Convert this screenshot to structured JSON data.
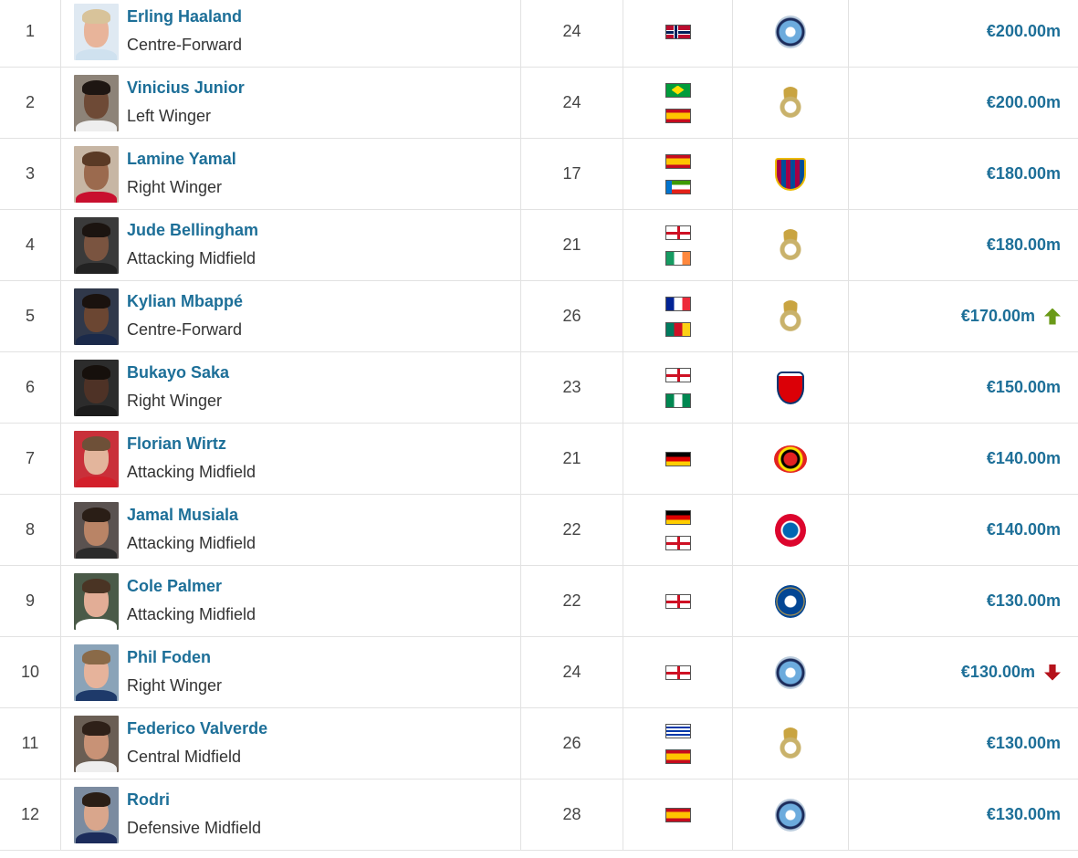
{
  "colors": {
    "link": "#1d6f98",
    "trend_up": "#6a9a18",
    "trend_down": "#b5121b",
    "border": "#e2e2e2"
  },
  "players": [
    {
      "rank": "1",
      "name": "Erling Haaland",
      "position": "Centre-Forward",
      "age": "24",
      "nationalities": [
        "no"
      ],
      "club": "mancity",
      "value": "€200.00m",
      "trend": null,
      "photo": {
        "skin": "#e8b49a",
        "hair": "#d8c39a",
        "shirt": "#cfe1ef",
        "bg": "#dfe9f2"
      }
    },
    {
      "rank": "2",
      "name": "Vinicius Junior",
      "position": "Left Winger",
      "age": "24",
      "nationalities": [
        "br",
        "es"
      ],
      "club": "realmadrid",
      "value": "€200.00m",
      "trend": null,
      "photo": {
        "skin": "#6e4a36",
        "hair": "#1e1612",
        "shirt": "#eeeeee",
        "bg": "#8d8378"
      }
    },
    {
      "rank": "3",
      "name": "Lamine Yamal",
      "position": "Right Winger",
      "age": "17",
      "nationalities": [
        "es",
        "gq"
      ],
      "club": "barcelona",
      "value": "€180.00m",
      "trend": null,
      "photo": {
        "skin": "#9b6a4e",
        "hair": "#5a3a25",
        "shirt": "#c8102e",
        "bg": "#c7b6a4"
      }
    },
    {
      "rank": "4",
      "name": "Jude Bellingham",
      "position": "Attacking Midfield",
      "age": "21",
      "nationalities": [
        "en",
        "ie"
      ],
      "club": "realmadrid",
      "value": "€180.00m",
      "trend": null,
      "photo": {
        "skin": "#7a5440",
        "hair": "#1b1410",
        "shirt": "#222222",
        "bg": "#3a3a3a"
      }
    },
    {
      "rank": "5",
      "name": "Kylian Mbappé",
      "position": "Centre-Forward",
      "age": "26",
      "nationalities": [
        "fr",
        "cm"
      ],
      "club": "realmadrid",
      "value": "€170.00m",
      "trend": "up",
      "photo": {
        "skin": "#6b4632",
        "hair": "#1a120e",
        "shirt": "#1b2a4a",
        "bg": "#30384a"
      }
    },
    {
      "rank": "6",
      "name": "Bukayo Saka",
      "position": "Right Winger",
      "age": "23",
      "nationalities": [
        "en",
        "ng"
      ],
      "club": "arsenal",
      "value": "€150.00m",
      "trend": null,
      "photo": {
        "skin": "#4e3226",
        "hair": "#16100c",
        "shirt": "#1c1c1c",
        "bg": "#2c2c2c"
      }
    },
    {
      "rank": "7",
      "name": "Florian Wirtz",
      "position": "Attacking Midfield",
      "age": "21",
      "nationalities": [
        "de"
      ],
      "club": "leverkusen",
      "value": "€140.00m",
      "trend": null,
      "photo": {
        "skin": "#e3b59c",
        "hair": "#6e5038",
        "shirt": "#d3202b",
        "bg": "#c9303a"
      }
    },
    {
      "rank": "8",
      "name": "Jamal Musiala",
      "position": "Attacking Midfield",
      "age": "22",
      "nationalities": [
        "de",
        "en"
      ],
      "club": "bayern",
      "value": "€140.00m",
      "trend": null,
      "photo": {
        "skin": "#b98466",
        "hair": "#2a1e16",
        "shirt": "#2b2b2b",
        "bg": "#5a5250"
      }
    },
    {
      "rank": "9",
      "name": "Cole Palmer",
      "position": "Attacking Midfield",
      "age": "22",
      "nationalities": [
        "en"
      ],
      "club": "chelsea",
      "value": "€130.00m",
      "trend": null,
      "photo": {
        "skin": "#e2ad96",
        "hair": "#4a3424",
        "shirt": "#ffffff",
        "bg": "#4a5a48"
      }
    },
    {
      "rank": "10",
      "name": "Phil Foden",
      "position": "Right Winger",
      "age": "24",
      "nationalities": [
        "en"
      ],
      "club": "mancity",
      "value": "€130.00m",
      "trend": "down",
      "photo": {
        "skin": "#e6b39b",
        "hair": "#8a6a48",
        "shirt": "#1e3a6a",
        "bg": "#8aa3b8"
      }
    },
    {
      "rank": "11",
      "name": "Federico Valverde",
      "position": "Central Midfield",
      "age": "26",
      "nationalities": [
        "uy",
        "es"
      ],
      "club": "realmadrid",
      "value": "€130.00m",
      "trend": null,
      "photo": {
        "skin": "#c89276",
        "hair": "#2e2018",
        "shirt": "#eeeeee",
        "bg": "#6a5e54"
      }
    },
    {
      "rank": "12",
      "name": "Rodri",
      "position": "Defensive Midfield",
      "age": "28",
      "nationalities": [
        "es"
      ],
      "club": "mancity",
      "value": "€130.00m",
      "trend": null,
      "photo": {
        "skin": "#d9a68c",
        "hair": "#2a1e16",
        "shirt": "#1c2c5b",
        "bg": "#7b8ba0"
      }
    }
  ]
}
